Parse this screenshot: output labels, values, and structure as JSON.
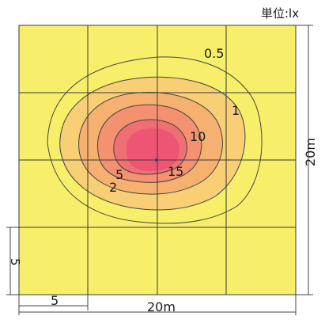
{
  "unit_label": "単位:lx",
  "dimensions": {
    "width_label": "20m",
    "height_label": "20m",
    "sub_width_label": "5",
    "sub_height_label": "5"
  },
  "contour_labels": [
    "0.5",
    "1",
    "10",
    "5",
    "2",
    "15"
  ],
  "colors": {
    "background": "#f7ef6a",
    "zone_1": "#f8cf74",
    "zone_2": "#f6b170",
    "zone_5": "#f39170",
    "zone_10": "#f06f72",
    "zone_15": "#ee5574",
    "grid": "#3a3a3a",
    "contour": "#444444",
    "dimension": "#444444"
  }
}
